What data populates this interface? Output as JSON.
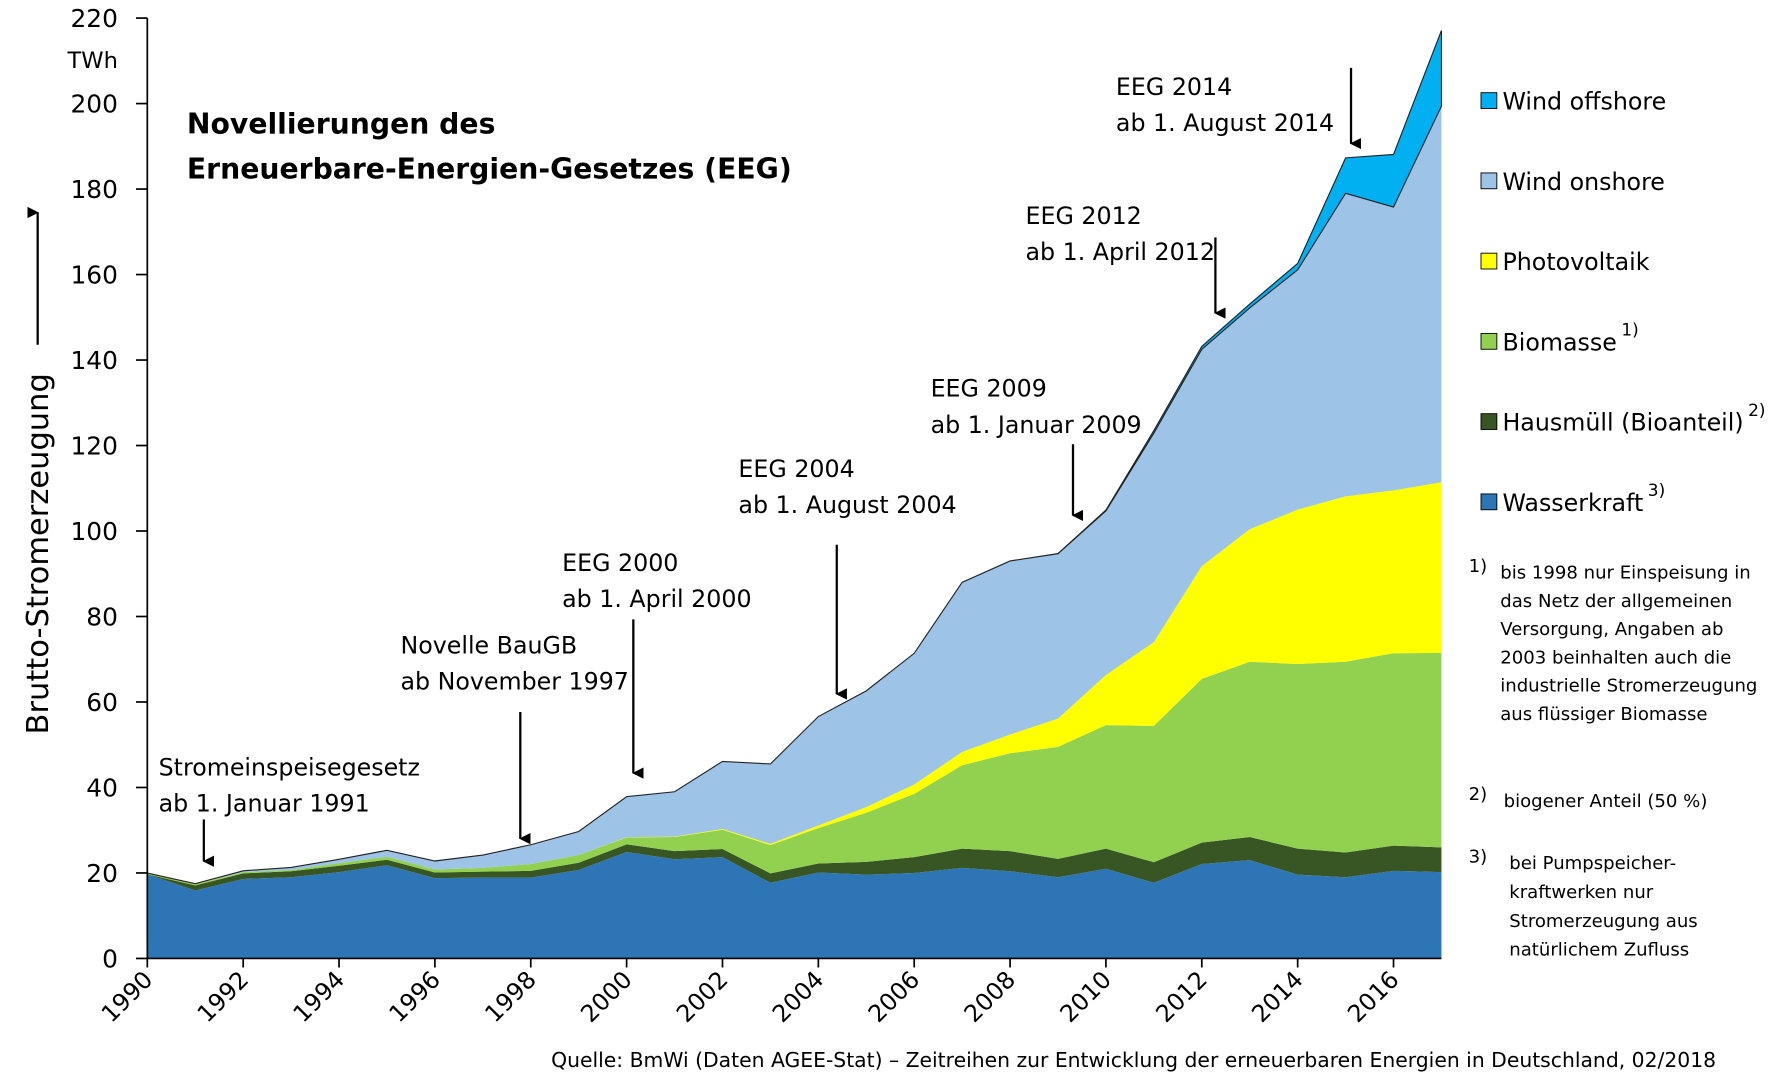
{
  "chart_data": {
    "type": "stacked-area",
    "title_lines": [
      "Novellierungen des",
      "Erneuerbare-Energien-Gesetzes (EEG)"
    ],
    "y_label": "Brutto-Stromerzeugung",
    "y_unit": "TWh",
    "x": [
      1990,
      1991,
      1992,
      1993,
      1994,
      1995,
      1996,
      1997,
      1998,
      1999,
      2000,
      2001,
      2002,
      2003,
      2004,
      2005,
      2006,
      2007,
      2008,
      2009,
      2010,
      2011,
      2012,
      2013,
      2014,
      2015,
      2016,
      2017
    ],
    "xlim": [
      1990,
      2017
    ],
    "xticks": [
      1990,
      1992,
      1994,
      1996,
      1998,
      2000,
      2002,
      2004,
      2006,
      2008,
      2010,
      2012,
      2014,
      2016
    ],
    "ylim": [
      0,
      220
    ],
    "yticks": [
      0,
      20,
      40,
      60,
      80,
      100,
      120,
      140,
      160,
      180,
      200,
      220
    ],
    "series": [
      {
        "name": "Wasserkraft",
        "note": "3)",
        "color": "#2e75b6",
        "values": [
          19.7,
          15.9,
          18.6,
          19.0,
          20.2,
          21.8,
          18.8,
          18.9,
          18.9,
          20.7,
          24.9,
          23.2,
          23.7,
          17.7,
          20.1,
          19.6,
          20.0,
          21.2,
          20.4,
          19.0,
          21.0,
          17.7,
          22.1,
          23.0,
          19.6,
          19.0,
          20.5,
          20.2
        ]
      },
      {
        "name": "Hausmüll (Bioanteil)",
        "note": "2)",
        "color": "#375623",
        "values": [
          0,
          1.2,
          1.3,
          1.4,
          1.5,
          1.3,
          1.3,
          1.4,
          1.6,
          1.7,
          1.8,
          1.9,
          1.9,
          2.2,
          2.1,
          3.0,
          3.7,
          4.5,
          4.7,
          4.3,
          4.7,
          4.8,
          5.0,
          5.4,
          6.1,
          5.8,
          5.9,
          5.8
        ]
      },
      {
        "name": "Biomasse",
        "note": "1)",
        "color": "#92d050",
        "values": [
          0.2,
          0.3,
          0.3,
          0.3,
          0.6,
          0.7,
          0.7,
          0.9,
          1.6,
          1.8,
          1.6,
          3.3,
          4.5,
          6.6,
          8.3,
          11.5,
          14.8,
          19.5,
          22.9,
          26.2,
          28.9,
          31.9,
          38.3,
          41.0,
          43.2,
          44.6,
          45.0,
          45.5
        ]
      },
      {
        "name": "Photovoltaik",
        "color": "#ffff00",
        "values": [
          0,
          0,
          0,
          0,
          0,
          0,
          0,
          0,
          0,
          0,
          0.06,
          0.1,
          0.2,
          0.3,
          0.6,
          1.3,
          2.2,
          3.1,
          4.4,
          6.6,
          11.7,
          19.6,
          26.4,
          31.0,
          36.1,
          38.7,
          38.1,
          39.9
        ]
      },
      {
        "name": "Wind onshore",
        "color": "#9dc3e6",
        "values": [
          0.07,
          0.1,
          0.3,
          0.6,
          0.9,
          1.5,
          2.0,
          3.0,
          4.5,
          5.5,
          9.5,
          10.5,
          15.8,
          18.7,
          25.5,
          27.2,
          30.7,
          39.7,
          40.6,
          38.6,
          38.4,
          48.9,
          50.7,
          51.8,
          56.1,
          70.9,
          66.3,
          88.0
        ]
      },
      {
        "name": "Wind offshore",
        "color": "#00b0f0",
        "values": [
          0,
          0,
          0,
          0,
          0,
          0,
          0,
          0,
          0,
          0,
          0,
          0,
          0,
          0,
          0,
          0,
          0,
          0,
          0,
          0.04,
          0.2,
          0.6,
          0.7,
          0.9,
          1.5,
          8.3,
          12.3,
          17.7
        ]
      }
    ],
    "annotations": [
      {
        "lines": [
          "Stromeinspeisegesetz",
          "ab 1. Januar 1991"
        ]
      },
      {
        "lines": [
          "Novelle BauGB",
          "ab November 1997"
        ]
      },
      {
        "lines": [
          "EEG 2000",
          "ab 1. April 2000"
        ]
      },
      {
        "lines": [
          "EEG 2004",
          "ab 1. August 2004"
        ]
      },
      {
        "lines": [
          "EEG 2009",
          "ab 1. Januar 2009"
        ]
      },
      {
        "lines": [
          "EEG 2012",
          "ab 1. April 2012"
        ]
      },
      {
        "lines": [
          "EEG 2014",
          "ab 1. August 2014"
        ]
      }
    ],
    "footnotes": [
      {
        "mark": "1)",
        "lines": [
          "bis 1998 nur Einspeisung in",
          "das  Netz der allgemeinen",
          "Versorgung, Angaben ab",
          "2003 beinhalten auch die",
          "industrielle Stromerzeugung",
          "aus flüssiger Biomasse"
        ]
      },
      {
        "mark": "2)",
        "lines": [
          "biogener Anteil (50 %)"
        ]
      },
      {
        "mark": "3)",
        "lines": [
          "bei Pumpspeicher-",
          "kraftwerken nur",
          "Stromerzeugung aus",
          "natürlichem Zufluss"
        ]
      }
    ],
    "source": "Quelle: BmWi (Daten AGEE-Stat) – Zeitreihen zur Entwicklung der erneuerbaren Energien in Deutschland, 02/2018"
  }
}
